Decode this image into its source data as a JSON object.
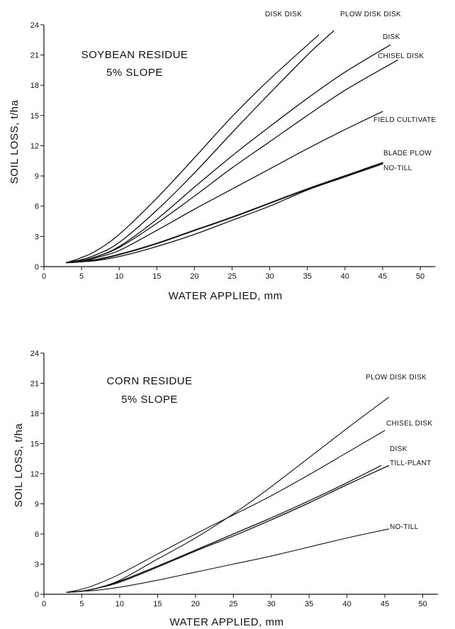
{
  "chart_data": [
    {
      "type": "line",
      "annotation": [
        "SOYBEAN RESIDUE",
        "5% SLOPE"
      ],
      "xlabel": "WATER APPLIED, mm",
      "ylabel": "SOIL LOSS, t/ha",
      "xlim": [
        0,
        52
      ],
      "ylim": [
        0,
        24
      ],
      "xticks": [
        0,
        5,
        10,
        15,
        20,
        25,
        30,
        35,
        40,
        45,
        50
      ],
      "yticks": [
        0,
        3,
        6,
        9,
        12,
        15,
        18,
        21,
        24
      ],
      "grid": false,
      "series": [
        {
          "name": "DISK DISK",
          "x": [
            3,
            5,
            7,
            10,
            15,
            20,
            25,
            30,
            36.5
          ],
          "y": [
            0.4,
            0.9,
            1.6,
            3.2,
            6.8,
            10.8,
            14.9,
            18.6,
            23.0
          ]
        },
        {
          "name": "PLOW DISK DISK",
          "x": [
            3,
            5,
            7,
            10,
            15,
            20,
            25,
            30,
            35,
            38.5
          ],
          "y": [
            0.4,
            0.7,
            1.2,
            2.4,
            5.6,
            9.3,
            13.3,
            17.2,
            21.0,
            23.4
          ]
        },
        {
          "name": "DISK",
          "x": [
            3,
            5,
            7,
            10,
            15,
            20,
            25,
            30,
            35,
            40,
            46
          ],
          "y": [
            0.4,
            0.6,
            1.0,
            2.0,
            4.7,
            7.9,
            11.0,
            13.9,
            16.7,
            19.3,
            22.0
          ]
        },
        {
          "name": "CHISEL DISK",
          "x": [
            3,
            5,
            7,
            10,
            15,
            20,
            25,
            30,
            35,
            40,
            47
          ],
          "y": [
            0.4,
            0.6,
            1.0,
            1.9,
            4.3,
            7.0,
            9.8,
            12.4,
            15.0,
            17.5,
            20.5
          ]
        },
        {
          "name": "FIELD CULTIVATE",
          "x": [
            3,
            5,
            7,
            10,
            15,
            20,
            25,
            30,
            35,
            40,
            45
          ],
          "y": [
            0.4,
            0.5,
            0.9,
            1.6,
            3.6,
            5.7,
            7.7,
            9.7,
            11.7,
            13.6,
            15.4
          ]
        },
        {
          "name": "BLADE PLOW",
          "x": [
            3,
            5,
            7,
            10,
            15,
            20,
            25,
            30,
            35,
            40,
            45
          ],
          "y": [
            0.4,
            0.5,
            0.7,
            1.2,
            2.3,
            3.6,
            4.9,
            6.3,
            7.7,
            9.0,
            10.3
          ]
        },
        {
          "name": "NO-TILL",
          "x": [
            3,
            5,
            7,
            10,
            15,
            20,
            25,
            30,
            35,
            40,
            45
          ],
          "y": [
            0.4,
            0.5,
            0.6,
            1.0,
            2.0,
            3.2,
            4.6,
            6.0,
            7.6,
            8.9,
            10.2
          ]
        }
      ]
    },
    {
      "type": "line",
      "annotation": [
        "CORN RESIDUE",
        "5% SLOPE"
      ],
      "xlabel": "WATER APPLIED, mm",
      "ylabel": "SOIL LOSS, t/ha",
      "xlim": [
        0,
        52
      ],
      "ylim": [
        0,
        24
      ],
      "xticks": [
        0,
        5,
        10,
        15,
        20,
        25,
        30,
        35,
        40,
        45,
        50
      ],
      "yticks": [
        0,
        3,
        6,
        9,
        12,
        15,
        18,
        21,
        24
      ],
      "grid": false,
      "series": [
        {
          "name": "PLOW DISK DISK",
          "x": [
            3,
            5,
            7,
            10,
            15,
            20,
            25,
            30,
            35,
            40,
            45.5
          ],
          "y": [
            0.2,
            0.3,
            0.6,
            1.4,
            3.5,
            5.6,
            8.0,
            10.7,
            13.6,
            16.5,
            19.6
          ]
        },
        {
          "name": "CHISEL DISK",
          "x": [
            3,
            5,
            7,
            10,
            15,
            20,
            25,
            30,
            35,
            40,
            45
          ],
          "y": [
            0.2,
            0.5,
            1.0,
            2.0,
            4.0,
            6.0,
            7.9,
            9.8,
            11.9,
            14.1,
            16.3
          ]
        },
        {
          "name": "DISK",
          "x": [
            3,
            5,
            7,
            10,
            15,
            20,
            25,
            30,
            35,
            40,
            44.5
          ],
          "y": [
            0.2,
            0.3,
            0.6,
            1.3,
            2.8,
            4.4,
            6.0,
            7.6,
            9.3,
            11.1,
            12.8
          ]
        },
        {
          "name": "TILL-PLANT",
          "x": [
            3,
            5,
            7,
            10,
            15,
            20,
            25,
            30,
            35,
            40,
            45.5
          ],
          "y": [
            0.2,
            0.3,
            0.6,
            1.2,
            2.7,
            4.3,
            5.8,
            7.4,
            9.1,
            10.9,
            12.8
          ]
        },
        {
          "name": "NO-TILL",
          "x": [
            3,
            5,
            7,
            10,
            15,
            20,
            25,
            30,
            35,
            40,
            45.5
          ],
          "y": [
            0.2,
            0.3,
            0.4,
            0.7,
            1.4,
            2.2,
            3.0,
            3.8,
            4.7,
            5.6,
            6.5
          ]
        }
      ]
    }
  ]
}
